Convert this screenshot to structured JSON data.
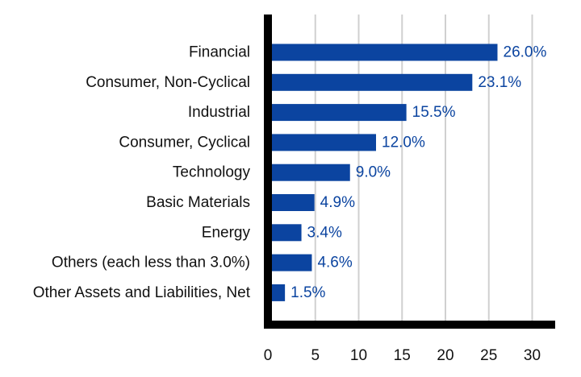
{
  "chart_data": {
    "type": "bar",
    "orientation": "horizontal",
    "categories": [
      "Financial",
      "Consumer, Non-Cyclical",
      "Industrial",
      "Consumer, Cyclical",
      "Technology",
      "Basic Materials",
      "Energy",
      "Others (each less than 3.0%)",
      "Other Assets and Liabilities, Net"
    ],
    "values": [
      26.0,
      23.1,
      15.5,
      12.0,
      9.0,
      4.9,
      3.4,
      4.6,
      1.5
    ],
    "value_labels": [
      "26.0%",
      "23.1%",
      "15.5%",
      "12.0%",
      "9.0%",
      "4.9%",
      "3.4%",
      "4.6%",
      "1.5%"
    ],
    "xticks": [
      0,
      5,
      10,
      15,
      20,
      25,
      30
    ],
    "xlim": [
      0,
      33
    ],
    "title": "",
    "xlabel": "",
    "ylabel": "",
    "grid": "vertical",
    "legend": "none",
    "bar_color": "#0b44a0",
    "label_color": "#0b44a0",
    "grid_color": "#d0d0d0",
    "axis_color": "#000000"
  }
}
